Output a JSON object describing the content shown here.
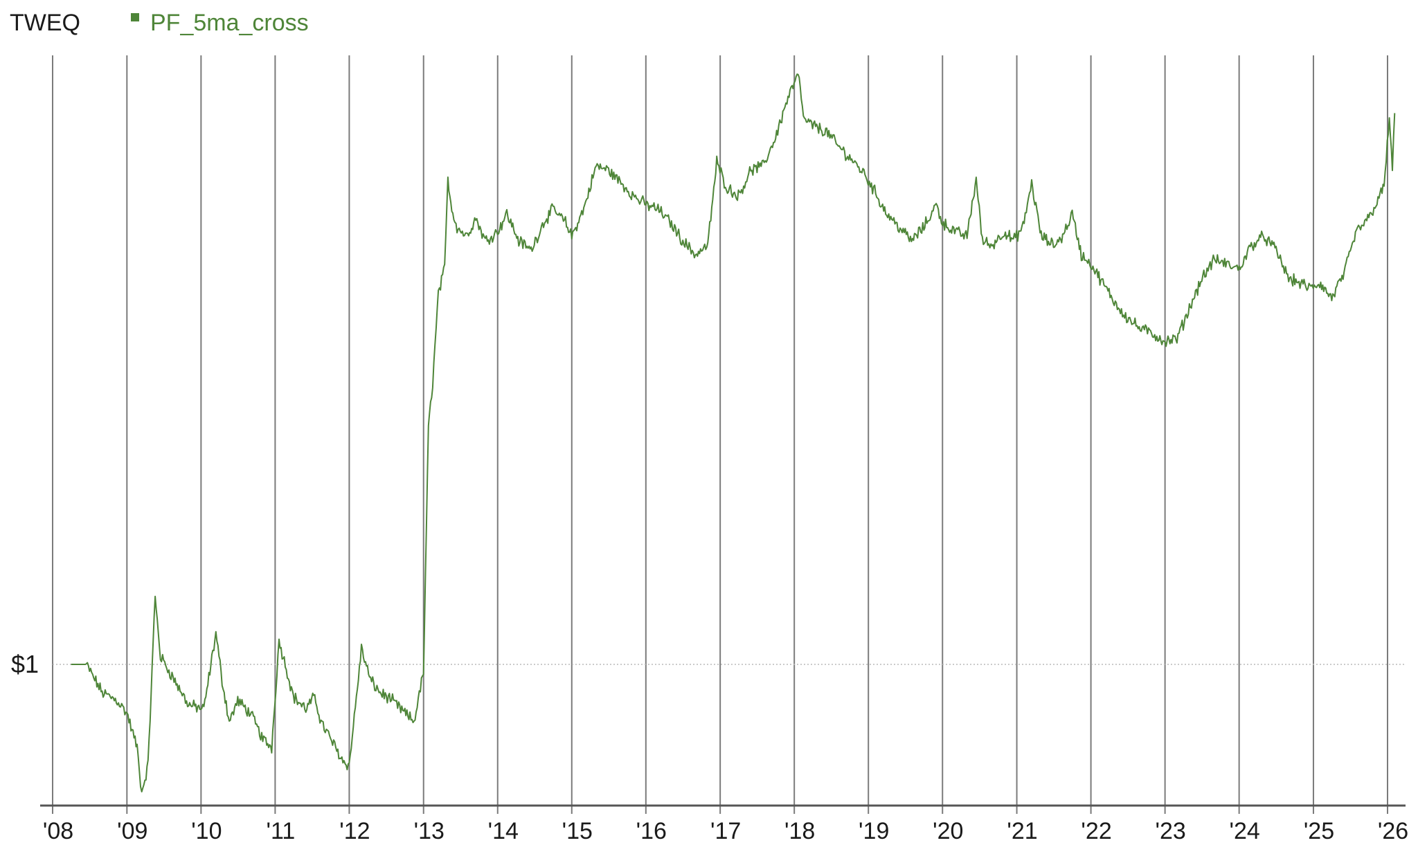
{
  "chart_data": {
    "type": "line",
    "title": "TWEQ",
    "legend_position": "top-left",
    "grid": "vertical-year-lines",
    "y_scale": "log",
    "y_ref_label": "$1",
    "y_ref_value": 1.0,
    "ylim": [
      0.8,
      2.4
    ],
    "xlim": [
      "2008-01-01",
      "2026-06-01"
    ],
    "x_tick_labels": [
      "'08",
      "'09",
      "'10",
      "'11",
      "'12",
      "'13",
      "'14",
      "'15",
      "'16",
      "'17",
      "'18",
      "'19",
      "'20",
      "'21",
      "'22",
      "'23",
      "'24",
      "'25",
      "'26"
    ],
    "x_tick_dates": [
      "2008-01-01",
      "2009-01-01",
      "2010-01-01",
      "2011-01-01",
      "2012-01-01",
      "2013-01-01",
      "2014-01-01",
      "2015-01-01",
      "2016-01-01",
      "2017-01-01",
      "2018-01-01",
      "2019-01-01",
      "2020-01-01",
      "2021-01-01",
      "2022-01-01",
      "2023-01-01",
      "2024-01-01",
      "2025-01-01",
      "2026-01-01"
    ],
    "series": [
      {
        "name": "PF_5ma_cross",
        "color": "#4e8538",
        "points": [
          [
            "2008-04-01",
            1.0
          ],
          [
            "2008-06-15",
            1.0
          ],
          [
            "2008-09-01",
            0.965
          ],
          [
            "2008-11-15",
            0.955
          ],
          [
            "2009-01-01",
            0.94
          ],
          [
            "2009-02-20",
            0.9
          ],
          [
            "2009-03-15",
            0.85
          ],
          [
            "2009-04-15",
            0.88
          ],
          [
            "2009-05-20",
            1.09
          ],
          [
            "2009-06-15",
            1.01
          ],
          [
            "2009-08-01",
            0.99
          ],
          [
            "2009-09-15",
            0.97
          ],
          [
            "2009-11-01",
            0.95
          ],
          [
            "2010-01-15",
            0.945
          ],
          [
            "2010-03-15",
            1.04
          ],
          [
            "2010-04-15",
            0.98
          ],
          [
            "2010-05-20",
            0.93
          ],
          [
            "2010-07-01",
            0.955
          ],
          [
            "2010-09-01",
            0.94
          ],
          [
            "2010-11-01",
            0.91
          ],
          [
            "2010-12-15",
            0.9
          ],
          [
            "2011-01-20",
            1.03
          ],
          [
            "2011-02-20",
            1.0
          ],
          [
            "2011-04-01",
            0.96
          ],
          [
            "2011-06-01",
            0.945
          ],
          [
            "2011-07-15",
            0.96
          ],
          [
            "2011-08-15",
            0.93
          ],
          [
            "2011-10-01",
            0.91
          ],
          [
            "2011-12-01",
            0.885
          ],
          [
            "2012-01-01",
            0.88
          ],
          [
            "2012-03-01",
            1.02
          ],
          [
            "2012-04-15",
            0.98
          ],
          [
            "2012-06-01",
            0.965
          ],
          [
            "2012-08-01",
            0.955
          ],
          [
            "2012-10-01",
            0.94
          ],
          [
            "2012-11-15",
            0.93
          ],
          [
            "2013-01-01",
            0.99
          ],
          [
            "2013-01-25",
            1.35
          ],
          [
            "2013-02-15",
            1.43
          ],
          [
            "2013-03-15",
            1.6
          ],
          [
            "2013-04-15",
            1.65
          ],
          [
            "2013-05-01",
            1.85
          ],
          [
            "2013-05-20",
            1.78
          ],
          [
            "2013-06-15",
            1.74
          ],
          [
            "2013-08-01",
            1.72
          ],
          [
            "2013-09-15",
            1.76
          ],
          [
            "2013-11-01",
            1.71
          ],
          [
            "2014-01-01",
            1.73
          ],
          [
            "2014-02-15",
            1.77
          ],
          [
            "2014-04-15",
            1.71
          ],
          [
            "2014-06-15",
            1.69
          ],
          [
            "2014-08-15",
            1.75
          ],
          [
            "2014-10-01",
            1.78
          ],
          [
            "2014-12-01",
            1.75
          ],
          [
            "2015-01-01",
            1.72
          ],
          [
            "2015-03-01",
            1.78
          ],
          [
            "2015-05-01",
            1.88
          ],
          [
            "2015-07-01",
            1.87
          ],
          [
            "2015-09-01",
            1.84
          ],
          [
            "2015-11-01",
            1.81
          ],
          [
            "2016-01-01",
            1.79
          ],
          [
            "2016-03-01",
            1.78
          ],
          [
            "2016-05-01",
            1.75
          ],
          [
            "2016-07-01",
            1.71
          ],
          [
            "2016-09-01",
            1.68
          ],
          [
            "2016-11-01",
            1.7
          ],
          [
            "2016-12-15",
            1.89
          ],
          [
            "2017-02-01",
            1.83
          ],
          [
            "2017-04-01",
            1.81
          ],
          [
            "2017-06-01",
            1.87
          ],
          [
            "2017-08-01",
            1.88
          ],
          [
            "2017-10-01",
            1.95
          ],
          [
            "2017-12-01",
            2.05
          ],
          [
            "2018-01-20",
            2.11
          ],
          [
            "2018-02-20",
            1.99
          ],
          [
            "2018-04-01",
            1.98
          ],
          [
            "2018-06-15",
            1.96
          ],
          [
            "2018-08-01",
            1.93
          ],
          [
            "2018-10-01",
            1.9
          ],
          [
            "2018-12-15",
            1.86
          ],
          [
            "2019-02-01",
            1.82
          ],
          [
            "2019-04-01",
            1.77
          ],
          [
            "2019-06-01",
            1.74
          ],
          [
            "2019-08-01",
            1.71
          ],
          [
            "2019-10-01",
            1.74
          ],
          [
            "2019-12-01",
            1.79
          ],
          [
            "2020-01-01",
            1.75
          ],
          [
            "2020-03-01",
            1.73
          ],
          [
            "2020-05-01",
            1.72
          ],
          [
            "2020-06-15",
            1.85
          ],
          [
            "2020-07-15",
            1.71
          ],
          [
            "2020-09-01",
            1.7
          ],
          [
            "2020-11-01",
            1.73
          ],
          [
            "2020-12-15",
            1.71
          ],
          [
            "2021-02-01",
            1.74
          ],
          [
            "2021-03-15",
            1.84
          ],
          [
            "2021-05-01",
            1.72
          ],
          [
            "2021-07-01",
            1.7
          ],
          [
            "2021-08-15",
            1.72
          ],
          [
            "2021-10-01",
            1.77
          ],
          [
            "2021-11-15",
            1.68
          ],
          [
            "2022-01-01",
            1.66
          ],
          [
            "2022-03-01",
            1.62
          ],
          [
            "2022-05-01",
            1.58
          ],
          [
            "2022-07-01",
            1.55
          ],
          [
            "2022-09-01",
            1.53
          ],
          [
            "2022-11-01",
            1.52
          ],
          [
            "2023-01-01",
            1.505
          ],
          [
            "2023-03-01",
            1.51
          ],
          [
            "2023-05-01",
            1.57
          ],
          [
            "2023-07-01",
            1.63
          ],
          [
            "2023-09-01",
            1.67
          ],
          [
            "2023-11-01",
            1.66
          ],
          [
            "2024-01-01",
            1.65
          ],
          [
            "2024-03-01",
            1.7
          ],
          [
            "2024-05-01",
            1.72
          ],
          [
            "2024-07-01",
            1.69
          ],
          [
            "2024-09-01",
            1.63
          ],
          [
            "2024-11-01",
            1.62
          ],
          [
            "2024-12-15",
            1.61
          ],
          [
            "2025-02-01",
            1.62
          ],
          [
            "2025-04-01",
            1.59
          ],
          [
            "2025-06-01",
            1.64
          ],
          [
            "2025-08-01",
            1.73
          ],
          [
            "2025-10-01",
            1.76
          ],
          [
            "2025-12-15",
            1.83
          ],
          [
            "2026-01-10",
            2.0
          ],
          [
            "2026-01-25",
            1.87
          ],
          [
            "2026-02-05",
            2.01
          ]
        ]
      }
    ]
  }
}
